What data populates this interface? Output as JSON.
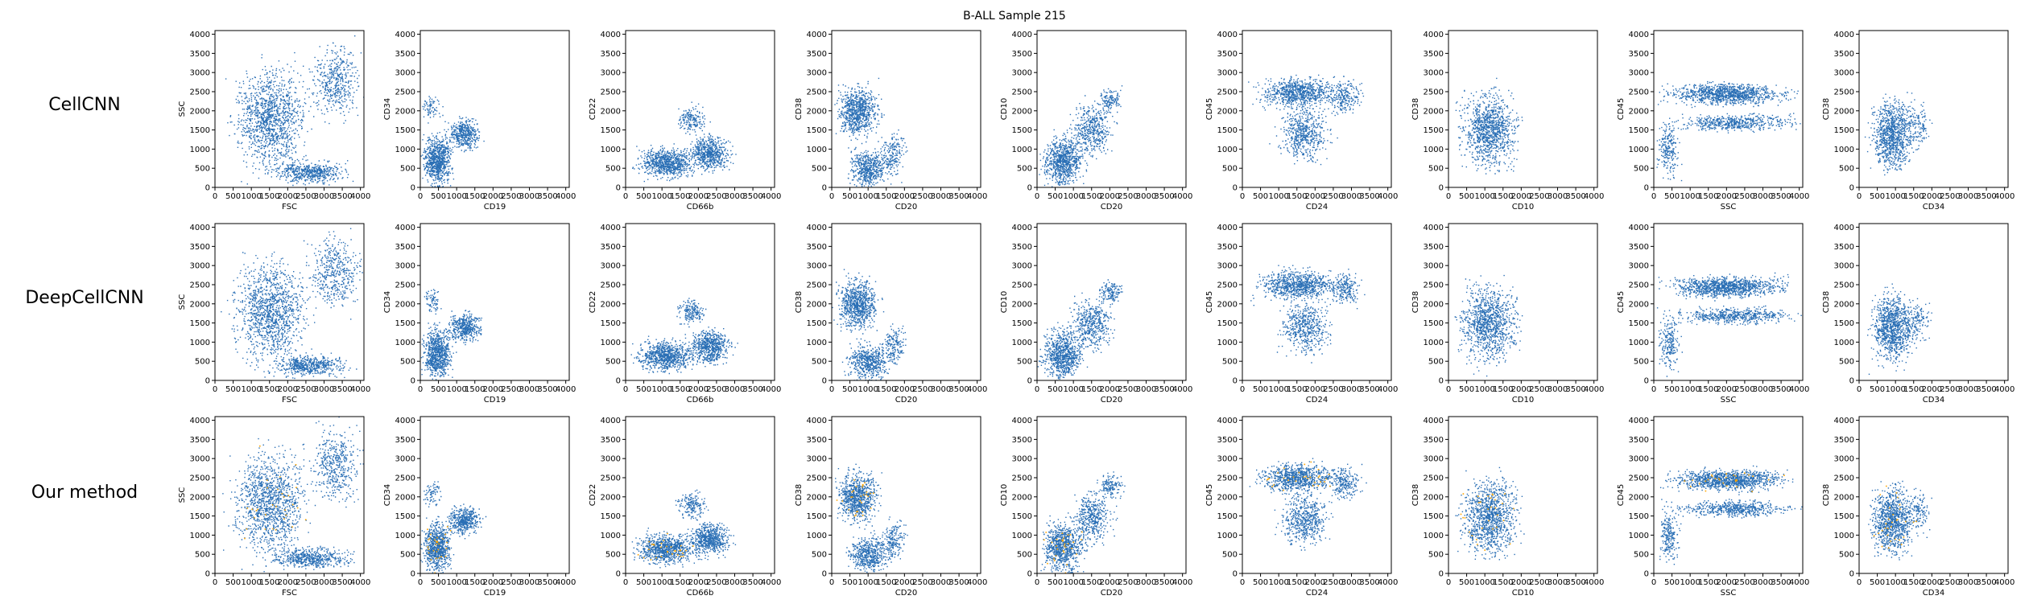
{
  "figure_title": "B-ALL Sample 215",
  "rows": [
    "CellCNN",
    "DeepCellCNN",
    "Our method"
  ],
  "colors": {
    "points": "#2a6fb5",
    "highlight": "#ffa500"
  },
  "chart_data": {
    "type": "scatter",
    "title": "B-ALL Sample 215",
    "xlim": [
      0,
      4096
    ],
    "ylim": [
      0,
      4096
    ],
    "ticks": [
      0,
      500,
      1000,
      1500,
      2000,
      2500,
      3000,
      3500,
      4000
    ],
    "panels": [
      {
        "xlabel": "FSC",
        "ylabel": "SSC"
      },
      {
        "xlabel": "CD19",
        "ylabel": "CD34"
      },
      {
        "xlabel": "CD66b",
        "ylabel": "CD22"
      },
      {
        "xlabel": "CD20",
        "ylabel": "CD38"
      },
      {
        "xlabel": "CD20",
        "ylabel": "CD10"
      },
      {
        "xlabel": "CD24",
        "ylabel": "CD45"
      },
      {
        "xlabel": "CD10",
        "ylabel": "CD38"
      },
      {
        "xlabel": "SSC",
        "ylabel": "CD45"
      },
      {
        "xlabel": "CD34",
        "ylabel": "CD38"
      }
    ]
  }
}
